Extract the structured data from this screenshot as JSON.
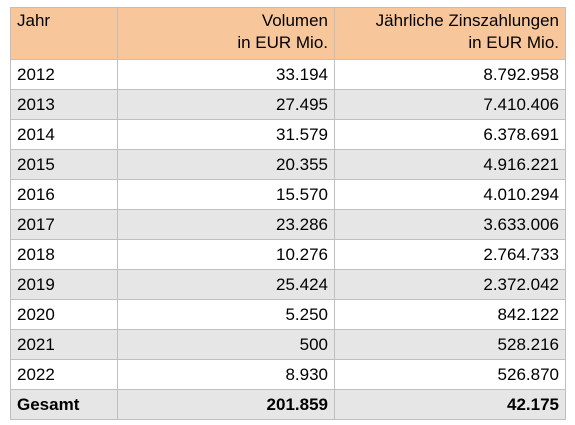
{
  "table": {
    "header": {
      "year": "Jahr",
      "volume_line1": "Volumen",
      "volume_line2": "in EUR Mio.",
      "interest_line1": "Jährliche Zinszahlungen",
      "interest_line2": "in EUR Mio."
    },
    "rows": [
      {
        "year": "2012",
        "volume": "33.194",
        "interest": "8.792.958"
      },
      {
        "year": "2013",
        "volume": "27.495",
        "interest": "7.410.406"
      },
      {
        "year": "2014",
        "volume": "31.579",
        "interest": "6.378.691"
      },
      {
        "year": "2015",
        "volume": "20.355",
        "interest": "4.916.221"
      },
      {
        "year": "2016",
        "volume": "15.570",
        "interest": "4.010.294"
      },
      {
        "year": "2017",
        "volume": "23.286",
        "interest": "3.633.006"
      },
      {
        "year": "2018",
        "volume": "10.276",
        "interest": "2.764.733"
      },
      {
        "year": "2019",
        "volume": "25.424",
        "interest": "2.372.042"
      },
      {
        "year": "2020",
        "volume": "5.250",
        "interest": "842.122"
      },
      {
        "year": "2021",
        "volume": "500",
        "interest": "528.216"
      },
      {
        "year": "2022",
        "volume": "8.930",
        "interest": "526.870"
      }
    ],
    "total": {
      "label": "Gesamt",
      "volume": "201.859",
      "interest": "42.175"
    }
  },
  "colors": {
    "header_bg": "#f7c79b",
    "stripe_bg": "#e6e6e6",
    "border": "#bfbfbf"
  }
}
